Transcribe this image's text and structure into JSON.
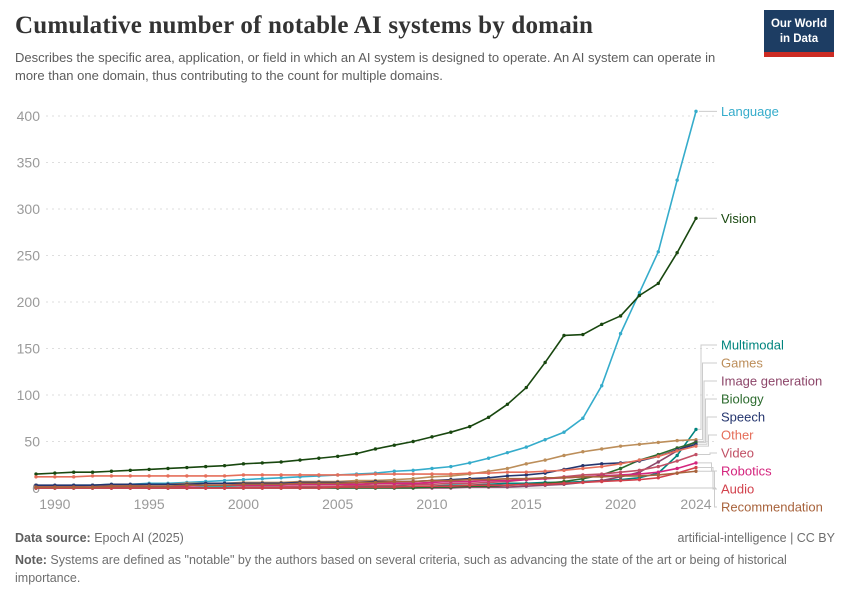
{
  "header": {
    "title": "Cumulative number of notable AI systems by domain",
    "subtitle": "Describes the specific area, application, or field in which an AI system is designed to operate. An AI system can operate in more than one domain, thus contributing to the count for multiple domains.",
    "logo": {
      "line1": "Our World",
      "line2": "in Data",
      "bg": "#1d3d63",
      "accent": "#cc2b23"
    }
  },
  "footer": {
    "datasource_label": "Data source:",
    "datasource": " Epoch AI (2025)",
    "license": "artificial-intelligence | CC BY",
    "note_label": "Note:",
    "note": " Systems are defined as \"notable\" by the authors based on several criteria, such as advancing the state of the art or being of historical importance."
  },
  "chart_data": {
    "type": "line",
    "title": "Cumulative number of notable AI systems by domain",
    "xlabel": "",
    "ylabel": "",
    "xlim": [
      1989,
      2024
    ],
    "ylim": [
      0,
      400
    ],
    "grid": "horizontal-dashed",
    "legend_position": "right-edge-labels-with-connectors",
    "xticks": [
      1990,
      1995,
      2000,
      2005,
      2010,
      2015,
      2020,
      2024
    ],
    "yticks": [
      0,
      50,
      100,
      150,
      200,
      250,
      300,
      350,
      400
    ],
    "x": [
      1989,
      1990,
      1991,
      1992,
      1993,
      1994,
      1995,
      1996,
      1997,
      1998,
      1999,
      2000,
      2001,
      2002,
      2003,
      2004,
      2005,
      2006,
      2007,
      2008,
      2009,
      2010,
      2011,
      2012,
      2013,
      2014,
      2015,
      2016,
      2017,
      2018,
      2019,
      2020,
      2021,
      2022,
      2023,
      2024
    ],
    "series": [
      {
        "name": "Language",
        "color": "#35accb",
        "values": [
          2,
          2,
          3,
          3,
          4,
          4,
          5,
          5,
          6,
          7,
          8,
          9,
          10,
          11,
          12,
          13,
          14,
          15,
          16,
          18,
          19,
          21,
          23,
          27,
          32,
          38,
          44,
          52,
          60,
          75,
          110,
          166,
          210,
          254,
          331,
          405
        ]
      },
      {
        "name": "Vision",
        "color": "#18470f",
        "values": [
          15,
          16,
          17,
          17,
          18,
          19,
          20,
          21,
          22,
          23,
          24,
          26,
          27,
          28,
          30,
          32,
          34,
          37,
          42,
          46,
          50,
          55,
          60,
          66,
          76,
          90,
          108,
          135,
          164,
          165,
          176,
          185,
          207,
          220,
          253,
          290
        ]
      },
      {
        "name": "Multimodal",
        "color": "#00847e",
        "values": [
          0,
          0,
          0,
          0,
          0,
          0,
          0,
          0,
          0,
          1,
          1,
          1,
          1,
          1,
          1,
          1,
          1,
          2,
          2,
          2,
          2,
          2,
          3,
          3,
          4,
          5,
          5,
          6,
          6,
          7,
          8,
          9,
          11,
          16,
          35,
          63
        ]
      },
      {
        "name": "Games",
        "color": "#bc8e5a",
        "values": [
          2,
          2,
          2,
          3,
          3,
          3,
          4,
          4,
          5,
          5,
          5,
          6,
          6,
          6,
          7,
          7,
          7,
          8,
          8,
          9,
          10,
          12,
          13,
          15,
          18,
          21,
          26,
          30,
          35,
          39,
          42,
          45,
          47,
          49,
          51,
          52
        ]
      },
      {
        "name": "Image generation",
        "color": "#8c4569",
        "values": [
          0,
          0,
          0,
          0,
          0,
          0,
          0,
          0,
          0,
          0,
          0,
          0,
          0,
          0,
          0,
          0,
          0,
          0,
          0,
          0,
          0,
          0,
          0,
          1,
          1,
          1,
          2,
          3,
          4,
          6,
          8,
          12,
          17,
          28,
          40,
          50
        ]
      },
      {
        "name": "Biology",
        "color": "#2c6b2e",
        "values": [
          0,
          0,
          0,
          0,
          0,
          0,
          0,
          0,
          0,
          0,
          0,
          0,
          0,
          0,
          0,
          0,
          0,
          0,
          0,
          0,
          0,
          1,
          1,
          2,
          2,
          3,
          4,
          5,
          7,
          10,
          14,
          21,
          30,
          36,
          43,
          49
        ]
      },
      {
        "name": "Speech",
        "color": "#24356e",
        "values": [
          3,
          3,
          3,
          3,
          4,
          4,
          4,
          4,
          4,
          5,
          5,
          5,
          5,
          5,
          6,
          6,
          6,
          6,
          7,
          7,
          7,
          8,
          9,
          10,
          11,
          13,
          14,
          16,
          20,
          24,
          26,
          27,
          29,
          34,
          41,
          47
        ]
      },
      {
        "name": "Other",
        "color": "#e56e5a",
        "values": [
          12,
          12,
          12,
          13,
          13,
          13,
          13,
          13,
          13,
          13,
          13,
          14,
          14,
          14,
          14,
          14,
          14,
          14,
          15,
          15,
          15,
          15,
          15,
          16,
          16,
          17,
          17,
          18,
          19,
          21,
          23,
          26,
          30,
          34,
          40,
          45
        ]
      },
      {
        "name": "Video",
        "color": "#c15065",
        "values": [
          0,
          0,
          0,
          0,
          0,
          0,
          0,
          0,
          0,
          0,
          0,
          1,
          1,
          1,
          2,
          2,
          2,
          3,
          3,
          3,
          4,
          4,
          5,
          5,
          6,
          7,
          9,
          10,
          12,
          14,
          15,
          17,
          19,
          23,
          29,
          36
        ]
      },
      {
        "name": "Robotics",
        "color": "#d4257e",
        "values": [
          1,
          1,
          1,
          1,
          2,
          2,
          2,
          2,
          2,
          3,
          3,
          3,
          3,
          3,
          4,
          4,
          4,
          4,
          5,
          5,
          5,
          6,
          7,
          7,
          8,
          8,
          9,
          10,
          11,
          12,
          13,
          14,
          15,
          17,
          21,
          27
        ]
      },
      {
        "name": "Audio",
        "color": "#d2414c",
        "values": [
          0,
          0,
          0,
          0,
          0,
          0,
          0,
          0,
          0,
          0,
          0,
          0,
          0,
          0,
          0,
          0,
          1,
          1,
          1,
          1,
          2,
          2,
          2,
          3,
          3,
          3,
          4,
          4,
          5,
          6,
          7,
          8,
          9,
          11,
          16,
          22
        ]
      },
      {
        "name": "Recommendation",
        "color": "#a8633c",
        "values": [
          1,
          1,
          1,
          1,
          2,
          2,
          2,
          2,
          3,
          3,
          3,
          4,
          4,
          4,
          5,
          5,
          5,
          6,
          6,
          7,
          7,
          8,
          8,
          9,
          9,
          10,
          10,
          11,
          11,
          12,
          12,
          13,
          13,
          14,
          16,
          18
        ]
      }
    ]
  }
}
